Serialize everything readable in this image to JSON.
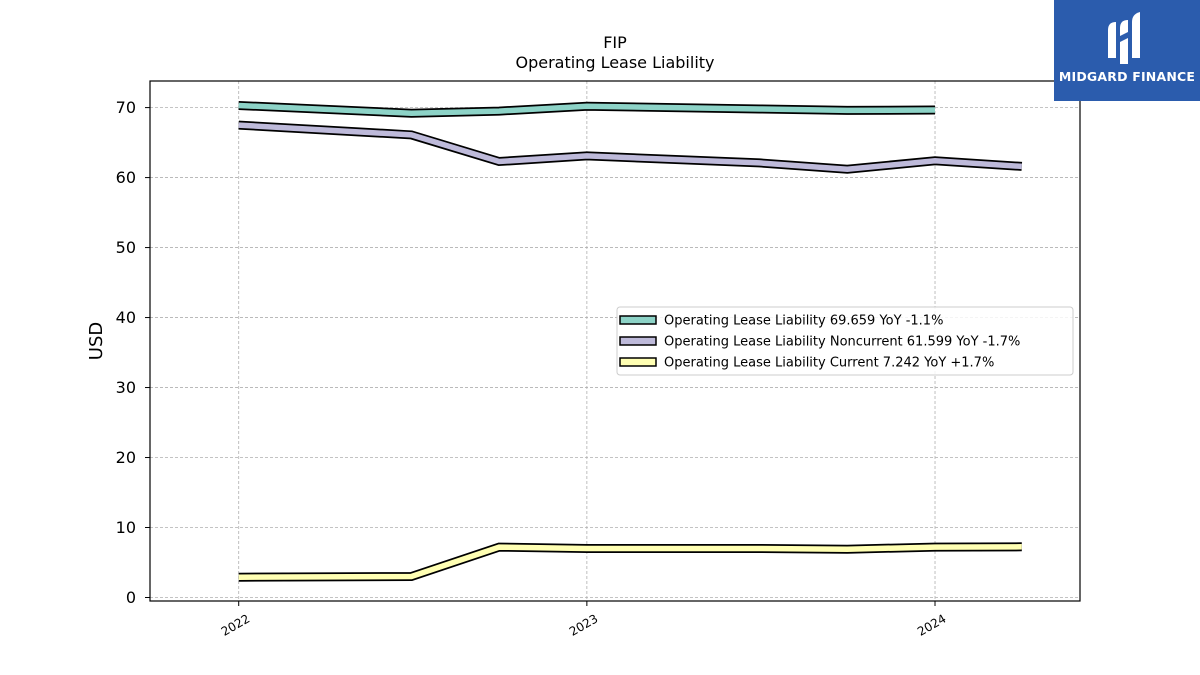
{
  "brand": {
    "name": "MIDGARD FINANCE",
    "bg_color": "#2b5cad"
  },
  "chart_data": {
    "type": "line",
    "title": "FIP",
    "subtitle": "Operating Lease Liability",
    "xlabel": "",
    "ylabel": "USD",
    "ylim": [
      -0.5,
      73.8
    ],
    "xlim": [
      "2021-09-30",
      "2024-06-01"
    ],
    "yticks": [
      0,
      10,
      20,
      30,
      40,
      50,
      60,
      70
    ],
    "xticks": [
      "2022",
      "2023",
      "2024"
    ],
    "grid": true,
    "legend_position": "center-right",
    "series": [
      {
        "name": "Operating Lease Liability",
        "legend_label": "Operating Lease Liability  69.659 YoY -1.1%",
        "color": "#8dd3c7",
        "x": [
          "2022-01-01",
          "2022-07-01",
          "2022-10-01",
          "2023-01-01",
          "2023-07-01",
          "2023-10-01",
          "2024-01-01"
        ],
        "y": [
          70.3,
          69.2,
          69.5,
          70.2,
          69.8,
          69.6,
          69.659
        ]
      },
      {
        "name": "Operating Lease Liability Noncurrent",
        "legend_label": "Operating Lease Liability Noncurrent  61.599 YoY -1.7%",
        "color": "#bebada",
        "x": [
          "2022-01-01",
          "2022-07-01",
          "2022-10-01",
          "2023-01-01",
          "2023-07-01",
          "2023-10-01",
          "2024-01-01",
          "2024-04-01"
        ],
        "y": [
          67.5,
          66.1,
          62.3,
          63.1,
          62.1,
          61.2,
          62.4,
          61.599
        ]
      },
      {
        "name": "Operating Lease Liability Current",
        "legend_label": "Operating Lease Liability Current  7.242 YoY +1.7%",
        "color": "#ffffb3",
        "x": [
          "2022-01-01",
          "2022-07-01",
          "2022-10-01",
          "2023-01-01",
          "2023-07-01",
          "2023-10-01",
          "2024-01-01",
          "2024-04-01"
        ],
        "y": [
          2.9,
          3.0,
          7.2,
          7.0,
          7.0,
          6.9,
          7.2,
          7.242
        ]
      }
    ]
  }
}
